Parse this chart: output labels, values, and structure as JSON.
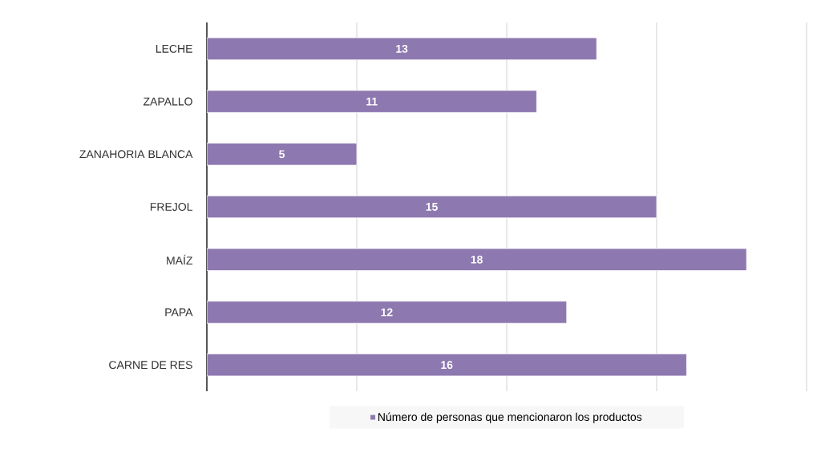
{
  "chart_data": {
    "type": "bar",
    "orientation": "horizontal",
    "categories": [
      "LECHE",
      "ZAPALLO",
      "ZANAHORIA BLANCA",
      "FREJOL",
      "MAÍZ",
      "PAPA",
      "CARNE DE RES"
    ],
    "series": [
      {
        "name": "Número de personas que mencionaron los productos",
        "color": "#8e78b0",
        "values": [
          13,
          11,
          5,
          15,
          18,
          12,
          16
        ]
      }
    ],
    "xlim": [
      0,
      20
    ],
    "xticks": [
      {
        "value": 0,
        "label": null
      },
      {
        "value": 5,
        "label": null
      },
      {
        "value": 10,
        "label": null
      },
      {
        "value": 15,
        "label": null
      },
      {
        "value": 20,
        "label": null
      }
    ],
    "tick_labels": "y",
    "grid": "x",
    "data_labels": true,
    "legend": "bottom"
  }
}
